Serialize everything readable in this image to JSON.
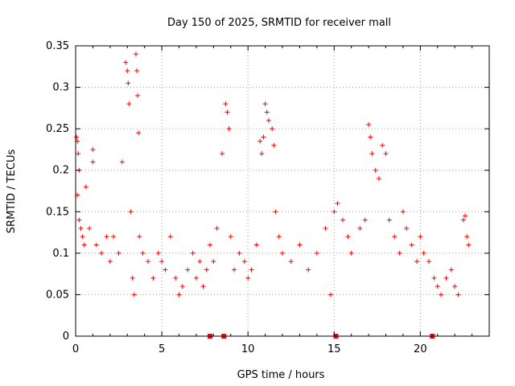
{
  "chart_data": {
    "type": "scatter",
    "title": "Day 150 of 2025, SRMTID for receiver mall",
    "xlabel": "GPS time / hours",
    "ylabel": "SRMTID / TECUs",
    "xlim": [
      0,
      24
    ],
    "ylim": [
      0,
      0.35
    ],
    "xticks": [
      0,
      5,
      10,
      15,
      20
    ],
    "xtick_labels": [
      "0",
      "5",
      "10",
      "15",
      "20"
    ],
    "yticks": [
      0,
      0.05,
      0.1,
      0.15,
      0.2,
      0.25,
      0.3,
      0.35
    ],
    "ytick_labels": [
      "0",
      "0.05",
      "0.1",
      "0.15",
      "0.2",
      "0.25",
      "0.3",
      "0.35"
    ],
    "grid": true,
    "marker": "plus",
    "color": "#ff0000",
    "series": [
      {
        "name": "SRMTID",
        "x": [
          0.05,
          0.1,
          0.15,
          0.2,
          0.1,
          0.2,
          0.3,
          0.4,
          0.5,
          0.6,
          0.8,
          1.0,
          1.0,
          1.2,
          1.5,
          1.8,
          2.0,
          2.2,
          2.5,
          2.7,
          2.9,
          3.0,
          3.05,
          3.1,
          3.2,
          3.3,
          3.4,
          3.5,
          3.55,
          3.6,
          3.65,
          3.7,
          3.9,
          4.2,
          4.5,
          4.8,
          5.0,
          5.2,
          5.5,
          5.8,
          6.0,
          6.2,
          6.5,
          6.8,
          7.0,
          7.2,
          7.4,
          7.6,
          7.8,
          8.0,
          8.2,
          8.5,
          8.7,
          8.8,
          8.9,
          9.0,
          9.2,
          9.5,
          9.8,
          10.0,
          10.2,
          10.5,
          10.7,
          10.8,
          10.9,
          11.0,
          11.1,
          11.2,
          11.4,
          11.5,
          11.6,
          11.8,
          12.0,
          12.5,
          13.0,
          13.5,
          14.0,
          14.5,
          14.8,
          15.0,
          15.2,
          15.5,
          15.8,
          16.0,
          16.5,
          16.8,
          17.0,
          17.1,
          17.2,
          17.4,
          17.6,
          17.8,
          18.0,
          18.2,
          18.5,
          18.8,
          19.0,
          19.2,
          19.5,
          19.8,
          20.0,
          20.2,
          20.5,
          20.8,
          21.0,
          21.2,
          21.5,
          21.8,
          22.0,
          22.2,
          22.5,
          22.6,
          22.7,
          22.8
        ],
        "y": [
          0.24,
          0.235,
          0.22,
          0.2,
          0.17,
          0.14,
          0.13,
          0.12,
          0.11,
          0.18,
          0.13,
          0.225,
          0.21,
          0.11,
          0.1,
          0.12,
          0.09,
          0.12,
          0.1,
          0.21,
          0.33,
          0.32,
          0.305,
          0.28,
          0.15,
          0.07,
          0.05,
          0.34,
          0.32,
          0.29,
          0.245,
          0.12,
          0.1,
          0.09,
          0.07,
          0.1,
          0.09,
          0.08,
          0.12,
          0.07,
          0.05,
          0.06,
          0.08,
          0.1,
          0.07,
          0.09,
          0.06,
          0.08,
          0.11,
          0.09,
          0.13,
          0.22,
          0.28,
          0.27,
          0.25,
          0.12,
          0.08,
          0.1,
          0.09,
          0.07,
          0.08,
          0.11,
          0.235,
          0.22,
          0.24,
          0.28,
          0.27,
          0.26,
          0.25,
          0.23,
          0.15,
          0.12,
          0.1,
          0.09,
          0.11,
          0.08,
          0.1,
          0.13,
          0.05,
          0.15,
          0.16,
          0.14,
          0.12,
          0.1,
          0.13,
          0.14,
          0.255,
          0.24,
          0.22,
          0.2,
          0.19,
          0.23,
          0.22,
          0.14,
          0.12,
          0.1,
          0.15,
          0.13,
          0.11,
          0.09,
          0.12,
          0.1,
          0.09,
          0.07,
          0.06,
          0.05,
          0.07,
          0.08,
          0.06,
          0.05,
          0.14,
          0.145,
          0.12,
          0.11
        ]
      }
    ],
    "zero_points_x": [
      7.8,
      8.6,
      15.1,
      20.7
    ]
  }
}
